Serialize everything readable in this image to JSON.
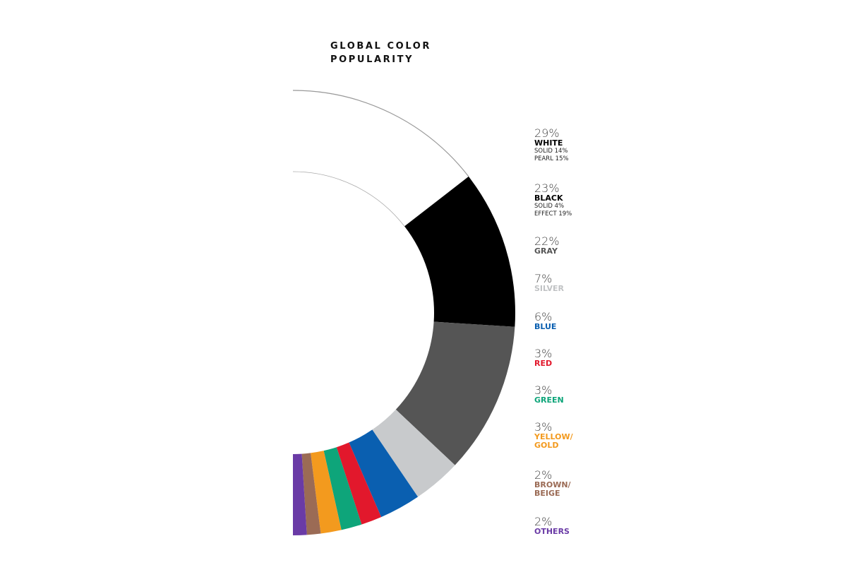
{
  "chart_data": {
    "type": "pie",
    "title": [
      "GLOBAL COLOR",
      "POPULARITY"
    ],
    "unit": "%",
    "slices": [
      {
        "label": "WHITE",
        "value": 29,
        "pct": "29%",
        "color": "#ffffff",
        "label_color": "#000000",
        "sub": [
          "SOLID 14%",
          "PEARL 15%"
        ]
      },
      {
        "label": "BLACK",
        "value": 23,
        "pct": "23%",
        "color": "#000000",
        "label_color": "#000000",
        "sub": [
          "SOLID 4%",
          "EFFECT 19%"
        ]
      },
      {
        "label": "GRAY",
        "value": 22,
        "pct": "22%",
        "color": "#555555",
        "label_color": "#555555",
        "sub": []
      },
      {
        "label": "SILVER",
        "value": 7,
        "pct": "7%",
        "color": "#c8cacc",
        "label_color": "#c0c2c4",
        "sub": []
      },
      {
        "label": "BLUE",
        "value": 6,
        "pct": "6%",
        "color": "#0a5fb0",
        "label_color": "#0a5fb0",
        "sub": []
      },
      {
        "label": "RED",
        "value": 3,
        "pct": "3%",
        "color": "#e2182c",
        "label_color": "#e2182c",
        "sub": []
      },
      {
        "label": "GREEN",
        "value": 3,
        "pct": "3%",
        "color": "#0ea57a",
        "label_color": "#0ea57a",
        "sub": []
      },
      {
        "label": [
          "YELLOW/",
          "GOLD"
        ],
        "value": 3,
        "pct": "3%",
        "color": "#f39a1e",
        "label_color": "#f39a1e",
        "sub": []
      },
      {
        "label": [
          "BROWN/",
          "BEIGE"
        ],
        "value": 2,
        "pct": "2%",
        "color": "#9b6b55",
        "label_color": "#9b6b55",
        "sub": []
      },
      {
        "label": "OTHERS",
        "value": 2,
        "pct": "2%",
        "color": "#6a3ba6",
        "label_color": "#6a3ba6",
        "sub": []
      }
    ],
    "legend_position": "right",
    "grid": false
  }
}
